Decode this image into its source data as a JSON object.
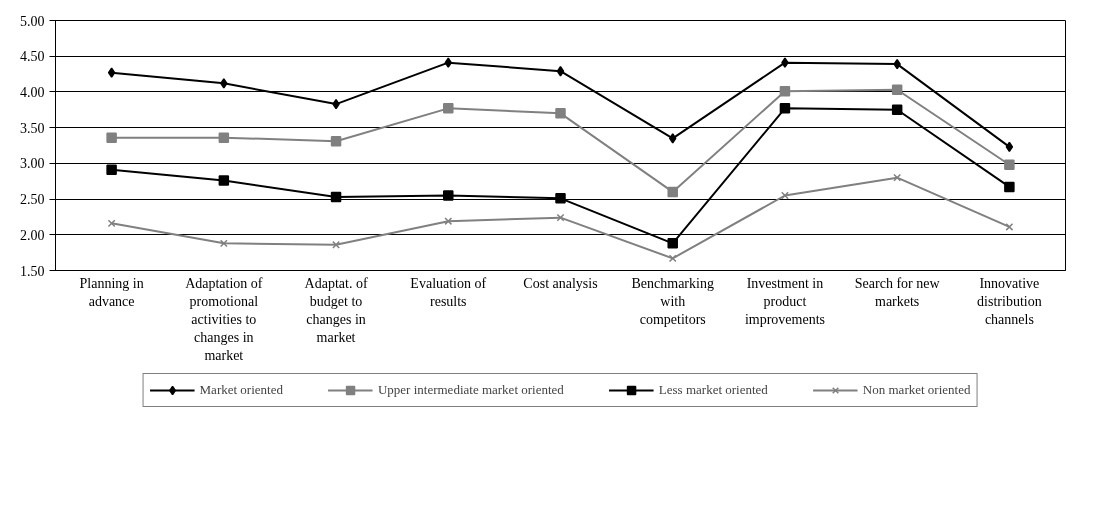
{
  "chart_data": {
    "type": "line",
    "categories": [
      "Planning in advance",
      "Adaptation of promotional activities to changes in market",
      "Adaptat. of budget to changes in market",
      "Evaluation of results",
      "Cost analysis",
      "Benchmarking with competitors",
      "Investment in product improvements",
      "Search for new markets",
      "Innovative distribution channels"
    ],
    "series": [
      {
        "name": "Market oriented",
        "color": "#000000",
        "marker": "diamond",
        "values": [
          4.27,
          4.12,
          3.83,
          4.41,
          4.29,
          3.35,
          4.41,
          4.39,
          3.23
        ]
      },
      {
        "name": "Upper intermediate market oriented",
        "color": "#808080",
        "marker": "square",
        "values": [
          3.36,
          3.36,
          3.31,
          3.77,
          3.7,
          2.6,
          4.01,
          4.03,
          2.98
        ]
      },
      {
        "name": "Less market oriented",
        "color": "#000000",
        "marker": "square",
        "values": [
          2.91,
          2.76,
          2.53,
          2.55,
          2.51,
          1.88,
          3.77,
          3.75,
          2.67
        ]
      },
      {
        "name": "Non market oriented",
        "color": "#808080",
        "marker": "cross",
        "values": [
          2.16,
          1.88,
          1.86,
          2.19,
          2.24,
          1.67,
          2.55,
          2.8,
          2.11
        ]
      }
    ],
    "ylim": [
      1.5,
      5.0
    ],
    "yticks": [
      {
        "value": 1.5,
        "label": "1.50"
      },
      {
        "value": 2.0,
        "label": "2.00"
      },
      {
        "value": 2.5,
        "label": "2.50"
      },
      {
        "value": 3.0,
        "label": "3.00"
      },
      {
        "value": 3.5,
        "label": "3.50"
      },
      {
        "value": 4.0,
        "label": "4.00"
      },
      {
        "value": 4.5,
        "label": "4.50"
      },
      {
        "value": 5.0,
        "label": "5.00"
      }
    ],
    "grid": "y",
    "legend": "bottom",
    "line_style": "solid"
  }
}
